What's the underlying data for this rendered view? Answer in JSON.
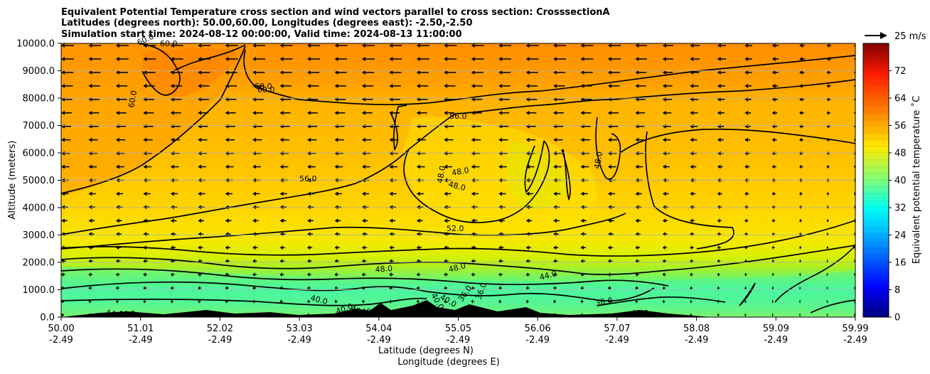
{
  "chart_data": {
    "type": "contour",
    "title_lines": [
      "Equivalent Potential Temperature cross section and wind vectors parallel to cross section: CrosssectionA",
      "Latitudes (degrees north): 50.00,60.00, Longitudes (degrees east): -2.50,-2.50",
      "Simulation start time: 2024-08-12 00:00:00, Valid time: 2024-08-13 11:00:00"
    ],
    "ylabel": "Altitude (meters)",
    "xlabel_lines": [
      "Latitude (degrees N)",
      "Longitude (degrees E)"
    ],
    "ylim": [
      0,
      10000
    ],
    "y_ticks": [
      "0.0",
      "1000.0",
      "2000.0",
      "3000.0",
      "4000.0",
      "5000.0",
      "6000.0",
      "7000.0",
      "8000.0",
      "9000.0",
      "10000.0"
    ],
    "x_ticks_lat": [
      "50.00",
      "51.01",
      "52.02",
      "53.03",
      "54.04",
      "55.05",
      "56.06",
      "57.07",
      "58.08",
      "59.09",
      "59.99"
    ],
    "x_ticks_lon": [
      "-2.49",
      "-2.49",
      "-2.49",
      "-2.49",
      "-2.49",
      "-2.49",
      "-2.49",
      "-2.49",
      "-2.49",
      "-2.49",
      "-2.49"
    ],
    "grid": "horizontal",
    "colorbar": {
      "label": "Equivalent potential temperature ˚C",
      "ticks": [
        "0",
        "8",
        "16",
        "24",
        "32",
        "40",
        "48",
        "56",
        "64",
        "72"
      ],
      "range": [
        0,
        80
      ],
      "colormap": "jet"
    },
    "quiver_key": "25 m/s",
    "contour_labels": [
      "60.0",
      "60.0",
      "60.0",
      "60.0",
      "60.0",
      "56.0",
      "56.0",
      "52.0",
      "48.0",
      "48.0",
      "48.0",
      "48.0",
      "48.0",
      "48.0",
      "44.0",
      "44.0",
      "44.0",
      "40.0",
      "40.0",
      "40.0",
      "40.0",
      "40.0",
      "40.0",
      "40.0",
      "36.0",
      "36.0",
      "36.0"
    ]
  }
}
